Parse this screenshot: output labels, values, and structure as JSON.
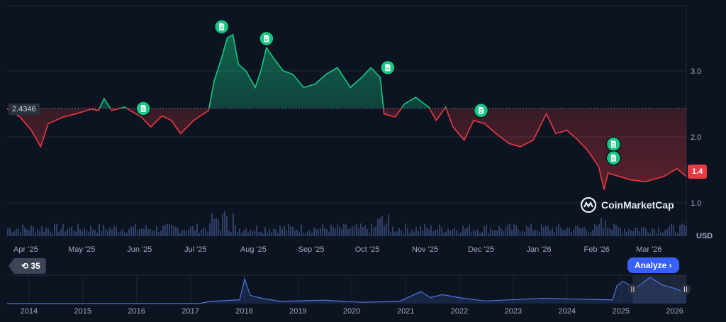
{
  "chart_data": {
    "type": "area",
    "currency_label": "USD",
    "baseline_value": 2.4346,
    "baseline_label": "2.4346",
    "current_value_label": "1.4",
    "y_ticks": [
      "3.0",
      "2.0",
      "1.0"
    ],
    "ylim": [
      0.5,
      4.0
    ],
    "xlim": [
      "2025-03-22",
      "2026-03-21"
    ],
    "x_ticks": [
      "Apr '25",
      "May '25",
      "Jun '25",
      "Jul '25",
      "Aug '25",
      "Sep '25",
      "Oct '25",
      "Nov '25",
      "Dec '25",
      "Jan '26",
      "Feb '26",
      "Mar '26"
    ],
    "x_tick_dates": [
      "2025-04-01",
      "2025-05-01",
      "2025-06-01",
      "2025-07-01",
      "2025-08-01",
      "2025-09-01",
      "2025-10-01",
      "2025-11-01",
      "2025-12-01",
      "2026-01-01",
      "2026-02-01",
      "2026-03-01"
    ],
    "colors": {
      "up": "#16c784",
      "down": "#ea3943",
      "volume": "#3a4a7a",
      "navigator": "#4e73df",
      "accent": "#3861fb"
    },
    "series": [
      {
        "points": [
          [
            "2025-03-22",
            2.43
          ],
          [
            "2025-03-29",
            2.3
          ],
          [
            "2025-04-04",
            2.1
          ],
          [
            "2025-04-09",
            1.85
          ],
          [
            "2025-04-13",
            2.2
          ],
          [
            "2025-04-21",
            2.3
          ],
          [
            "2025-04-28",
            2.35
          ],
          [
            "2025-05-06",
            2.42
          ],
          [
            "2025-05-10",
            2.4
          ],
          [
            "2025-05-13",
            2.58
          ],
          [
            "2025-05-17",
            2.4
          ],
          [
            "2025-05-24",
            2.45
          ],
          [
            "2025-06-02",
            2.3
          ],
          [
            "2025-06-07",
            2.15
          ],
          [
            "2025-06-13",
            2.32
          ],
          [
            "2025-06-18",
            2.25
          ],
          [
            "2025-06-23",
            2.05
          ],
          [
            "2025-06-30",
            2.25
          ],
          [
            "2025-07-08",
            2.4
          ],
          [
            "2025-07-11",
            2.85
          ],
          [
            "2025-07-15",
            3.2
          ],
          [
            "2025-07-18",
            3.5
          ],
          [
            "2025-07-21",
            3.55
          ],
          [
            "2025-07-24",
            3.1
          ],
          [
            "2025-07-28",
            3.0
          ],
          [
            "2025-08-02",
            2.75
          ],
          [
            "2025-08-05",
            3.0
          ],
          [
            "2025-08-08",
            3.35
          ],
          [
            "2025-08-13",
            3.15
          ],
          [
            "2025-08-17",
            3.0
          ],
          [
            "2025-08-22",
            2.95
          ],
          [
            "2025-08-28",
            2.75
          ],
          [
            "2025-09-03",
            2.8
          ],
          [
            "2025-09-09",
            2.95
          ],
          [
            "2025-09-15",
            3.05
          ],
          [
            "2025-09-22",
            2.75
          ],
          [
            "2025-09-28",
            2.9
          ],
          [
            "2025-10-03",
            3.05
          ],
          [
            "2025-10-08",
            2.9
          ],
          [
            "2025-10-10",
            2.35
          ],
          [
            "2025-10-16",
            2.3
          ],
          [
            "2025-10-21",
            2.5
          ],
          [
            "2025-10-27",
            2.6
          ],
          [
            "2025-11-03",
            2.45
          ],
          [
            "2025-11-07",
            2.25
          ],
          [
            "2025-11-12",
            2.45
          ],
          [
            "2025-11-16",
            2.15
          ],
          [
            "2025-11-22",
            1.95
          ],
          [
            "2025-11-27",
            2.25
          ],
          [
            "2025-12-03",
            2.2
          ],
          [
            "2025-12-09",
            2.05
          ],
          [
            "2025-12-16",
            1.9
          ],
          [
            "2025-12-22",
            1.85
          ],
          [
            "2025-12-29",
            1.95
          ],
          [
            "2026-01-05",
            2.35
          ],
          [
            "2026-01-10",
            2.05
          ],
          [
            "2026-01-16",
            2.1
          ],
          [
            "2026-01-22",
            1.95
          ],
          [
            "2026-01-27",
            1.8
          ],
          [
            "2026-02-02",
            1.55
          ],
          [
            "2026-02-05",
            1.2
          ],
          [
            "2026-02-07",
            1.45
          ],
          [
            "2026-02-13",
            1.4
          ],
          [
            "2026-02-19",
            1.35
          ],
          [
            "2026-02-27",
            1.32
          ],
          [
            "2026-03-09",
            1.4
          ],
          [
            "2026-03-16",
            1.52
          ],
          [
            "2026-03-21",
            1.4
          ]
        ]
      }
    ],
    "news_markers": [
      [
        "2025-07-15",
        3.67
      ],
      [
        "2025-08-08",
        3.49
      ],
      [
        "2025-10-12",
        3.05
      ],
      [
        "2025-06-03",
        2.43
      ],
      [
        "2025-12-01",
        2.4
      ],
      [
        "2026-02-10",
        1.89
      ],
      [
        "2026-02-10",
        1.68
      ]
    ],
    "grid": true
  },
  "navigator": {
    "years": [
      "2014",
      "2015",
      "2016",
      "2017",
      "2018",
      "2019",
      "2020",
      "2021",
      "2022",
      "2023",
      "2024",
      "2025",
      "2026"
    ],
    "xlim": [
      "2013-08-05",
      "2026-03-21"
    ],
    "ylim": [
      0,
      3.8
    ],
    "selected_range": [
      "2025-03-22",
      "2026-03-21"
    ],
    "points": [
      [
        "2013-08-05",
        0
      ],
      [
        "2017-03-01",
        0.01
      ],
      [
        "2017-05-20",
        0.3
      ],
      [
        "2017-12-01",
        0.5
      ],
      [
        "2018-01-04",
        3.3
      ],
      [
        "2018-02-10",
        1.1
      ],
      [
        "2018-05-01",
        0.7
      ],
      [
        "2018-09-01",
        0.3
      ],
      [
        "2019-06-20",
        0.45
      ],
      [
        "2020-03-15",
        0.17
      ],
      [
        "2020-11-20",
        0.3
      ],
      [
        "2021-04-14",
        1.6
      ],
      [
        "2021-06-20",
        0.8
      ],
      [
        "2021-09-05",
        1.2
      ],
      [
        "2022-01-15",
        0.75
      ],
      [
        "2022-06-20",
        0.35
      ],
      [
        "2023-07-15",
        0.7
      ],
      [
        "2024-03-10",
        0.6
      ],
      [
        "2024-11-05",
        0.5
      ],
      [
        "2024-12-05",
        2.4
      ],
      [
        "2025-01-16",
        3.0
      ],
      [
        "2025-04-08",
        2.0
      ],
      [
        "2025-07-18",
        3.5
      ],
      [
        "2025-10-10",
        2.5
      ],
      [
        "2026-01-05",
        2.0
      ],
      [
        "2026-03-21",
        1.4
      ]
    ]
  },
  "controls": {
    "range_label": "35",
    "analyze_label": "Analyze ›"
  },
  "watermark": "CoinMarketCap"
}
